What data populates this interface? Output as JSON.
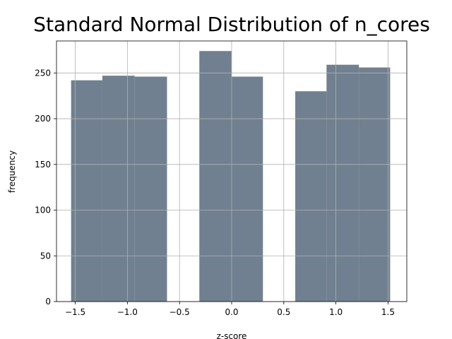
{
  "chart_data": {
    "type": "bar",
    "title": "Standard Normal Distribution of n_cores",
    "xlabel": "z-score",
    "ylabel": "frequency",
    "xlim": [
      -1.68,
      1.68
    ],
    "ylim": [
      0,
      285
    ],
    "grid": true,
    "bar_color": "#708090",
    "bins": [
      {
        "x0": -1.54,
        "x1": -1.24,
        "value": 242
      },
      {
        "x0": -1.24,
        "x1": -0.93,
        "value": 247
      },
      {
        "x0": -0.93,
        "x1": -0.62,
        "value": 246
      },
      {
        "x0": -0.62,
        "x1": -0.31,
        "value": 0
      },
      {
        "x0": -0.31,
        "x1": 0.0,
        "value": 274
      },
      {
        "x0": 0.0,
        "x1": 0.3,
        "value": 246
      },
      {
        "x0": 0.3,
        "x1": 0.61,
        "value": 0
      },
      {
        "x0": 0.61,
        "x1": 0.91,
        "value": 230
      },
      {
        "x0": 0.91,
        "x1": 1.22,
        "value": 259
      },
      {
        "x0": 1.22,
        "x1": 1.52,
        "value": 256
      }
    ],
    "x_ticks": [
      {
        "value": -1.5,
        "label": "−1.5"
      },
      {
        "value": -1.0,
        "label": "−1.0"
      },
      {
        "value": -0.5,
        "label": "−0.5"
      },
      {
        "value": 0.0,
        "label": "0.0"
      },
      {
        "value": 0.5,
        "label": "0.5"
      },
      {
        "value": 1.0,
        "label": "1.0"
      },
      {
        "value": 1.5,
        "label": "1.5"
      }
    ],
    "y_ticks": [
      {
        "value": 0,
        "label": "0"
      },
      {
        "value": 50,
        "label": "50"
      },
      {
        "value": 100,
        "label": "100"
      },
      {
        "value": 150,
        "label": "150"
      },
      {
        "value": 200,
        "label": "200"
      },
      {
        "value": 250,
        "label": "250"
      }
    ]
  }
}
